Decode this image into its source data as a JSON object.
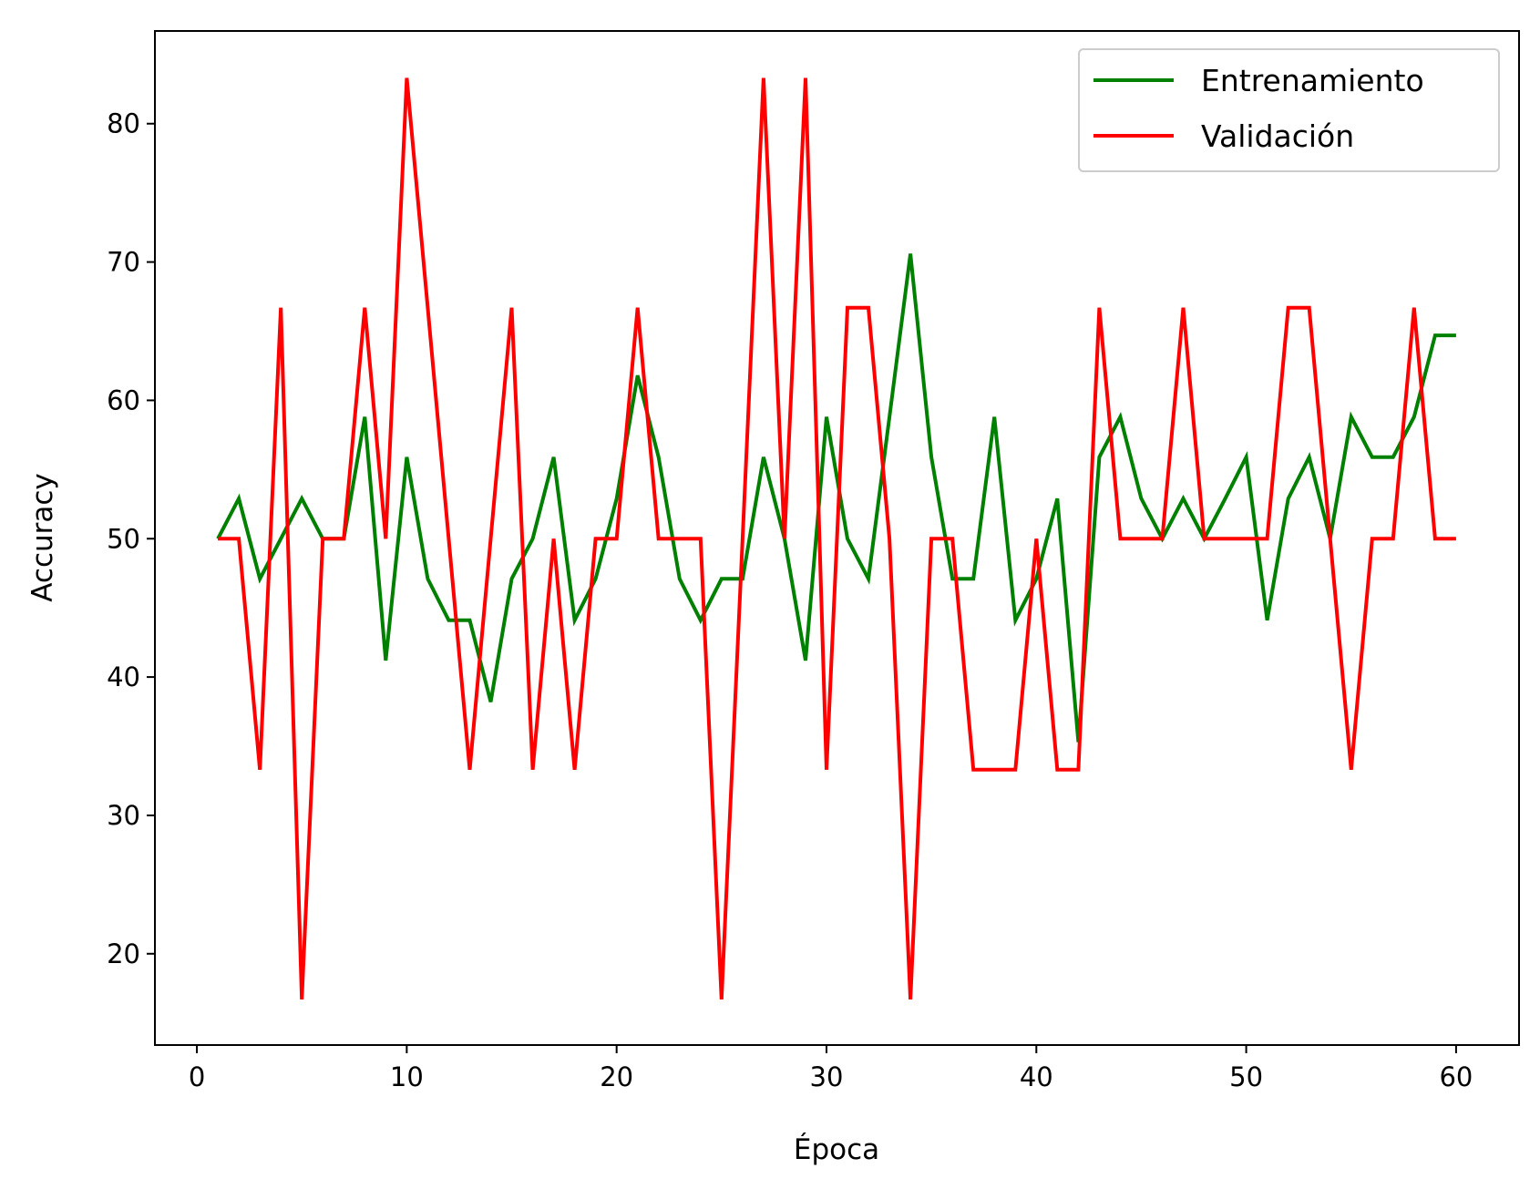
{
  "chart_data": {
    "type": "line",
    "xlabel": "Época",
    "ylabel": "Accuracy",
    "xlim": [
      -2,
      63
    ],
    "ylim": [
      13.4,
      86.7
    ],
    "xticks": [
      0,
      10,
      20,
      30,
      40,
      50,
      60
    ],
    "yticks": [
      20,
      30,
      40,
      50,
      60,
      70,
      80
    ],
    "grid": false,
    "legend_position": "top-right",
    "x": [
      1,
      2,
      3,
      4,
      5,
      6,
      7,
      8,
      9,
      10,
      11,
      12,
      13,
      14,
      15,
      16,
      17,
      18,
      19,
      20,
      21,
      22,
      23,
      24,
      25,
      26,
      27,
      28,
      29,
      30,
      31,
      32,
      33,
      34,
      35,
      36,
      37,
      38,
      39,
      40,
      41,
      42,
      43,
      44,
      45,
      46,
      47,
      48,
      49,
      50,
      51,
      52,
      53,
      54,
      55,
      56,
      57,
      58,
      59,
      60
    ],
    "series": [
      {
        "name": "Entrenamiento",
        "color": "#008000",
        "values": [
          50,
          52.9,
          47.1,
          50,
          52.9,
          50,
          50,
          58.8,
          41.2,
          55.9,
          47.1,
          44.1,
          44.1,
          38.2,
          47.1,
          50,
          55.9,
          44.1,
          47.1,
          52.9,
          61.8,
          55.9,
          47.1,
          44.1,
          47.1,
          47.1,
          55.9,
          50,
          41.2,
          58.8,
          50,
          47.1,
          58.8,
          70.6,
          55.9,
          47.1,
          47.1,
          58.8,
          44.1,
          47.1,
          52.9,
          35.3,
          55.9,
          58.8,
          52.9,
          50,
          52.9,
          50,
          52.9,
          55.9,
          44.1,
          52.9,
          55.9,
          50,
          58.8,
          55.9,
          55.9,
          58.8,
          64.7,
          64.7
        ]
      },
      {
        "name": "Validación",
        "color": "#ff0000",
        "values": [
          50,
          50,
          33.3,
          66.7,
          16.7,
          50,
          50,
          66.7,
          50,
          83.3,
          66.7,
          50,
          33.3,
          50,
          66.7,
          33.3,
          50,
          33.3,
          50,
          50,
          66.7,
          50,
          50,
          50,
          16.7,
          50,
          83.3,
          50,
          83.3,
          33.3,
          66.7,
          66.7,
          50,
          16.7,
          50,
          50,
          33.3,
          33.3,
          33.3,
          50,
          33.3,
          33.3,
          66.7,
          50,
          50,
          50,
          66.7,
          50,
          50,
          50,
          50,
          66.7,
          66.7,
          50,
          33.3,
          50,
          50,
          66.7,
          50,
          50
        ]
      }
    ]
  }
}
